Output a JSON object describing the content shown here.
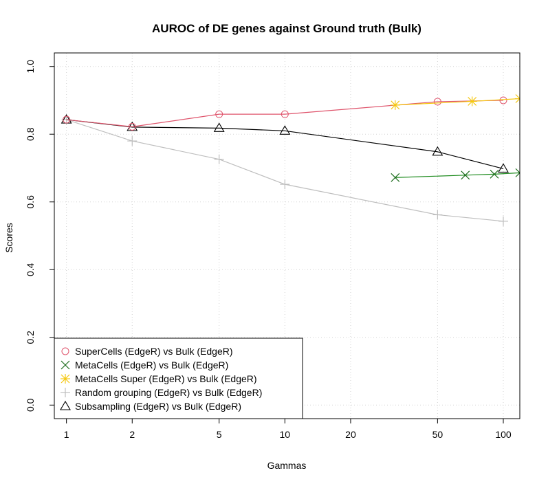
{
  "chart_data": {
    "type": "line",
    "title": "AUROC of DE genes against Ground truth (Bulk)",
    "xlabel": "Gammas",
    "ylabel": "Scores",
    "x_scale": "log",
    "xlim": [
      0.88,
      119
    ],
    "ylim": [
      -0.04,
      1.04
    ],
    "x_ticks": [
      1,
      2,
      5,
      10,
      20,
      50,
      100
    ],
    "y_ticks": [
      0.0,
      0.2,
      0.4,
      0.6,
      0.8,
      1.0
    ],
    "y_tick_labels": [
      "0.0",
      "0.2",
      "0.4",
      "0.6",
      "0.8",
      "1.0"
    ],
    "x_tick_labels": [
      "1",
      "2",
      "5",
      "10",
      "20",
      "50",
      "100"
    ],
    "grid": true,
    "legend_position": "bottom-left",
    "series": [
      {
        "name": "SuperCells (EdgeR) vs Bulk (EdgeR)",
        "color": "#DF536B",
        "marker_color": "#DF536B",
        "marker": "circle",
        "x": [
          1,
          2,
          5,
          10,
          50,
          100
        ],
        "y": [
          0.843,
          0.822,
          0.859,
          0.859,
          0.896,
          0.9
        ]
      },
      {
        "name": "MetaCells (EdgeR) vs Bulk (EdgeR)",
        "color": "#1C8A1C",
        "marker_color": "#1C6B1C",
        "marker": "x",
        "x": [
          32,
          67,
          91,
          119
        ],
        "y": [
          0.672,
          0.679,
          0.682,
          0.686
        ]
      },
      {
        "name": "MetaCells Super (EdgeR) vs Bulk (EdgeR)",
        "color": "#F5C710",
        "marker_color": "#F5C710",
        "marker": "asterisk",
        "x": [
          32,
          72,
          119
        ],
        "y": [
          0.886,
          0.897,
          0.905
        ]
      },
      {
        "name": "Random grouping (EdgeR) vs Bulk (EdgeR)",
        "color": "#BEBEBE",
        "marker_color": "#BEBEBE",
        "marker": "plus",
        "x": [
          1,
          2,
          5,
          10,
          50,
          100
        ],
        "y": [
          0.843,
          0.78,
          0.726,
          0.652,
          0.562,
          0.543
        ]
      },
      {
        "name": "Subsampling (EdgeR) vs Bulk (EdgeR)",
        "color": "#000000",
        "marker_color": "#000000",
        "marker": "triangle",
        "x": [
          1,
          2,
          5,
          10,
          50,
          100
        ],
        "y": [
          0.843,
          0.821,
          0.818,
          0.81,
          0.748,
          0.698
        ]
      }
    ]
  }
}
